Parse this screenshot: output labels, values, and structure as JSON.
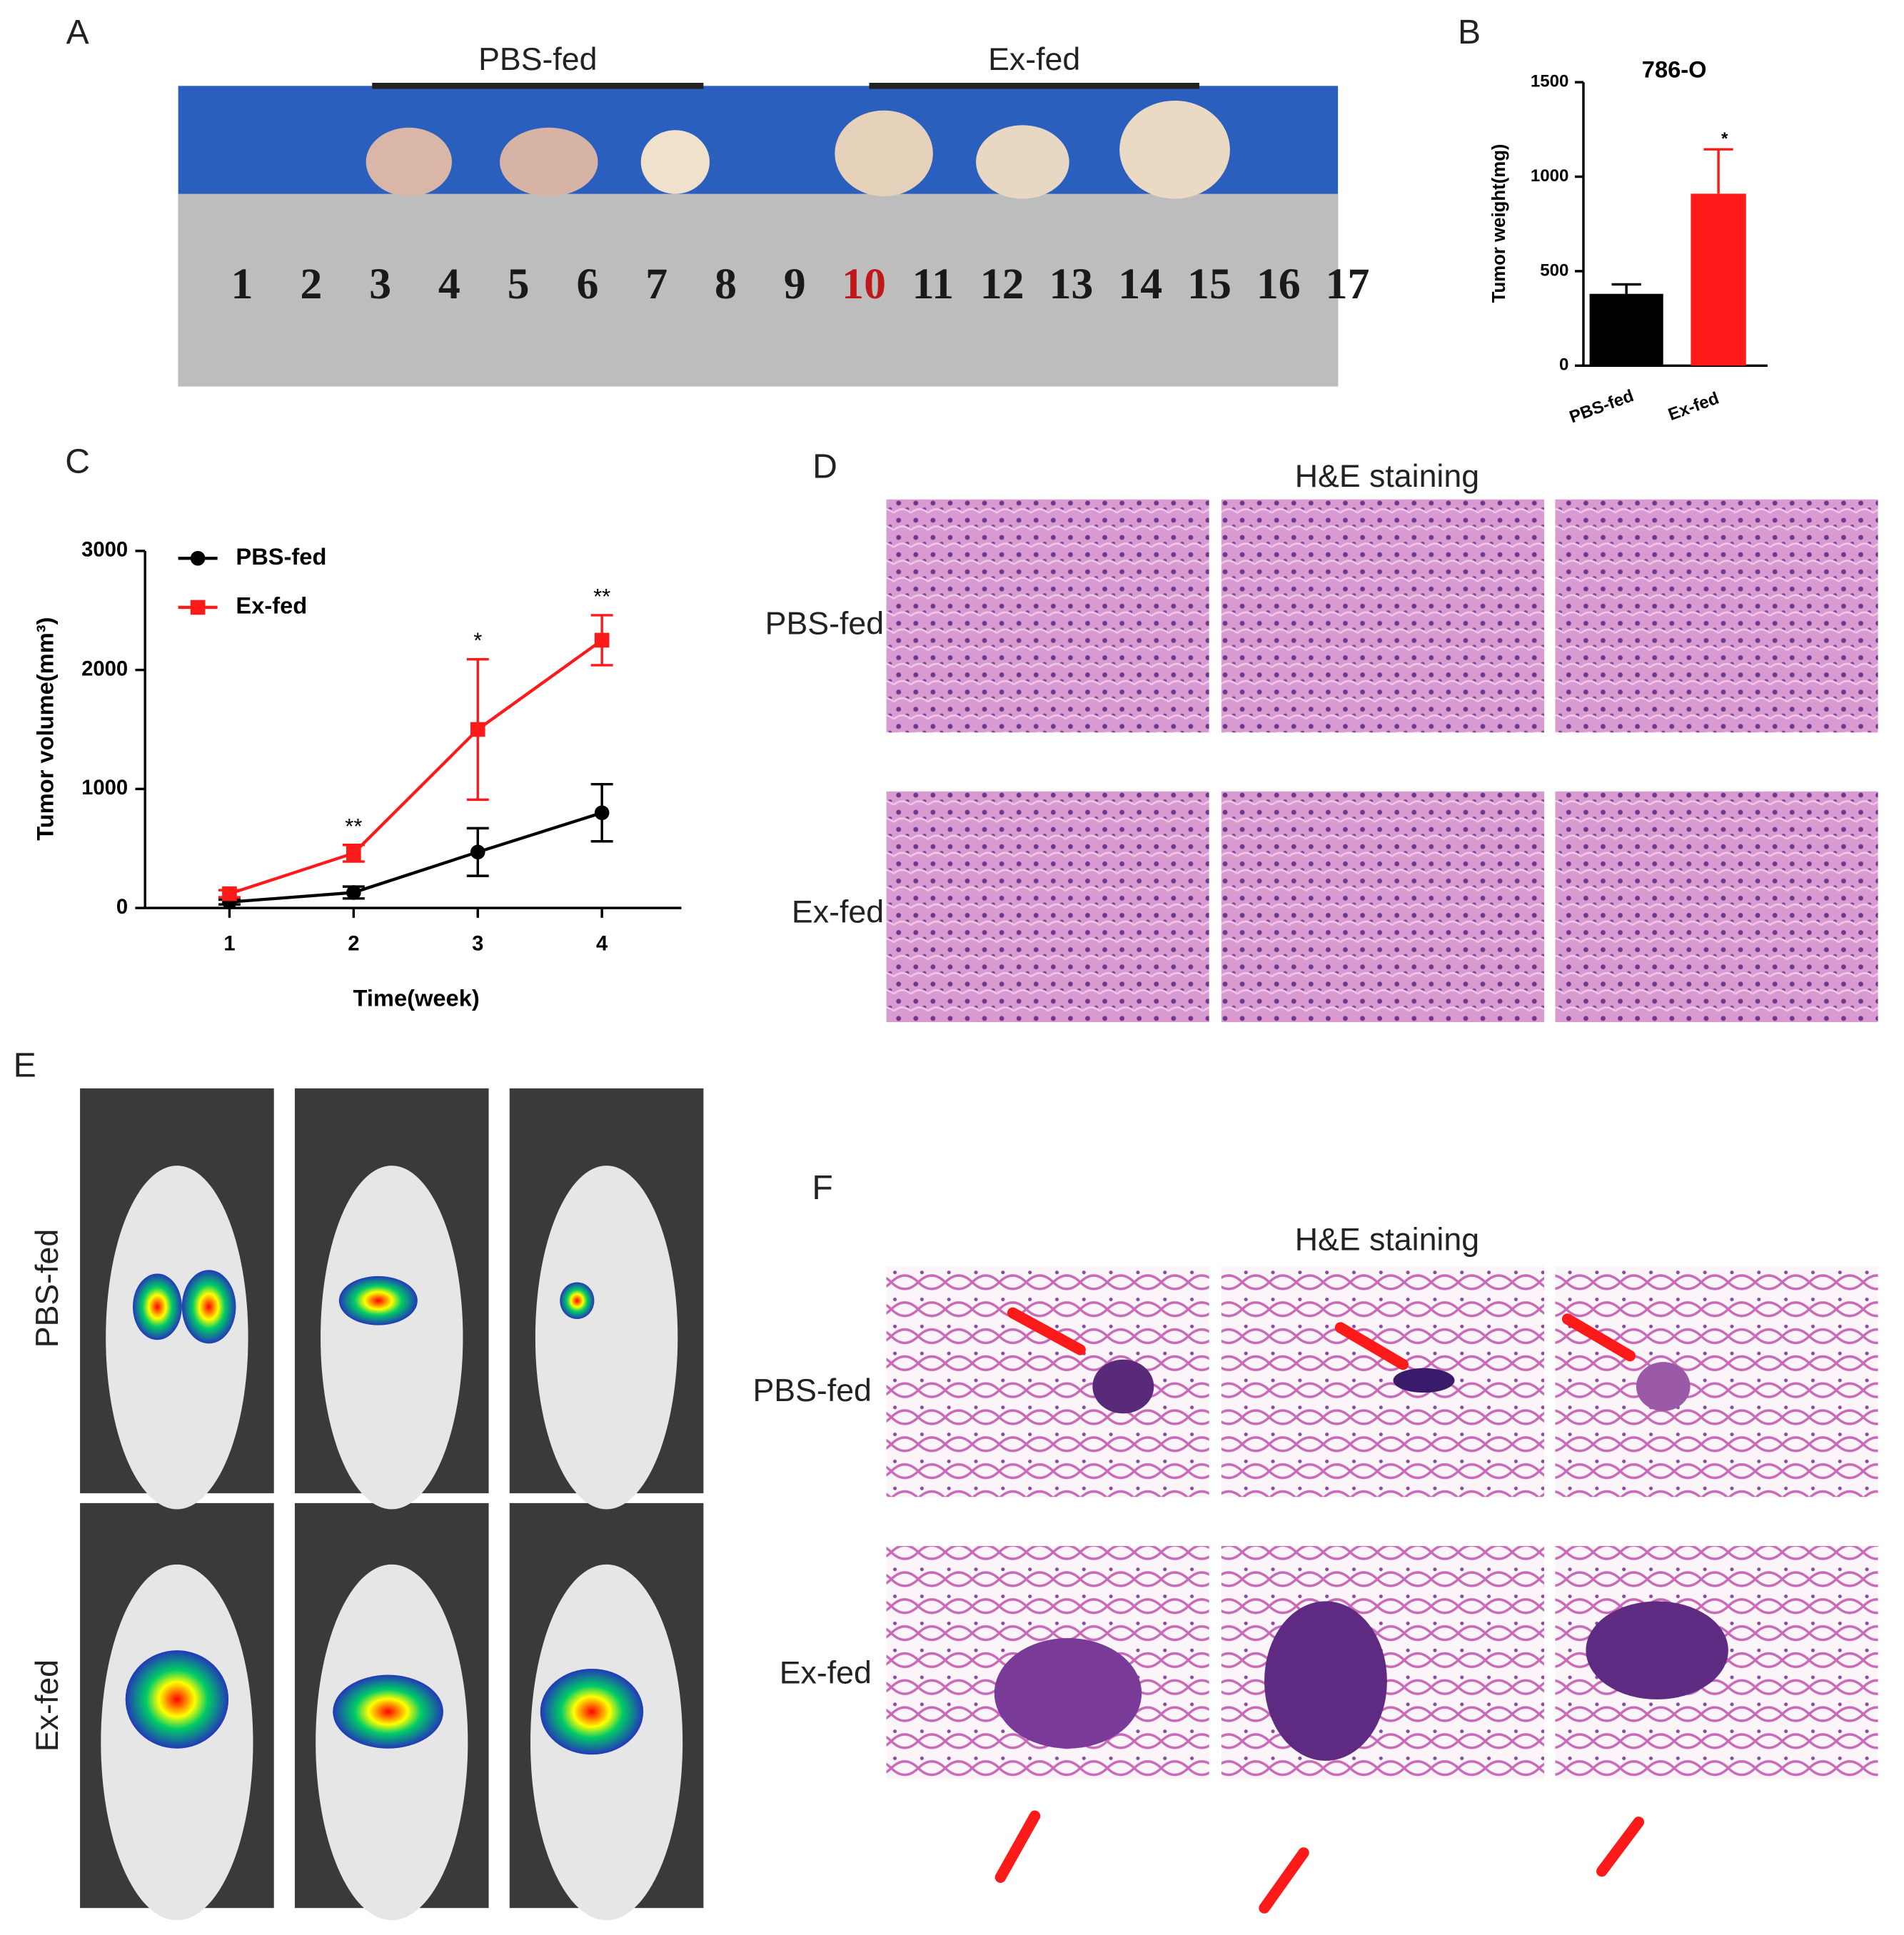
{
  "panel_letters": [
    "A",
    "B",
    "C",
    "D",
    "E",
    "F"
  ],
  "panel_a": {
    "groups": [
      "PBS-fed",
      "Ex-fed"
    ],
    "ruler_numbers": [
      "1",
      "2",
      "3",
      "4",
      "5",
      "6",
      "7",
      "8",
      "9",
      "10",
      "11",
      "12",
      "13",
      "14",
      "15",
      "16",
      "17"
    ]
  },
  "chart_data": [
    {
      "type": "bar",
      "title": "786-O",
      "ylabel": "Tumor weight(mg)",
      "categories": [
        "PBS-fed",
        "Ex-fed"
      ],
      "values": [
        380,
        910
      ],
      "errors": [
        50,
        235
      ],
      "colors": [
        "#000000",
        "#ff1a1a"
      ],
      "annotations": [
        null,
        "*"
      ],
      "ylim": [
        0,
        1500
      ],
      "yticks": [
        0,
        500,
        1000,
        1500
      ]
    },
    {
      "type": "line",
      "xlabel": "Time(week)",
      "ylabel": "Tumor volume(mm³)",
      "x": [
        1,
        2,
        3,
        4
      ],
      "xlim": [
        0.32,
        4.64
      ],
      "xticks": [
        1,
        2,
        3,
        4
      ],
      "ylim": [
        0,
        3000
      ],
      "yticks": [
        0,
        1000,
        2000,
        3000
      ],
      "legend": "upper left",
      "series": [
        {
          "name": "PBS-fed",
          "color": "#000000",
          "marker": "circle",
          "values": [
            50,
            130,
            470,
            800
          ],
          "errors": [
            20,
            50,
            200,
            240
          ]
        },
        {
          "name": "Ex-fed",
          "color": "#ff1a1a",
          "marker": "square",
          "values": [
            120,
            460,
            1500,
            2250
          ],
          "errors": [
            30,
            70,
            590,
            210
          ]
        }
      ],
      "annotations": [
        null,
        "**",
        "*",
        "**"
      ]
    }
  ],
  "panel_d": {
    "title": "H&E staining",
    "rows": [
      "PBS-fed",
      "Ex-fed"
    ]
  },
  "panel_e": {
    "rows": [
      "PBS-fed",
      "Ex-fed"
    ]
  },
  "panel_f": {
    "title": "H&E staining",
    "rows": [
      "PBS-fed",
      "Ex-fed"
    ]
  }
}
